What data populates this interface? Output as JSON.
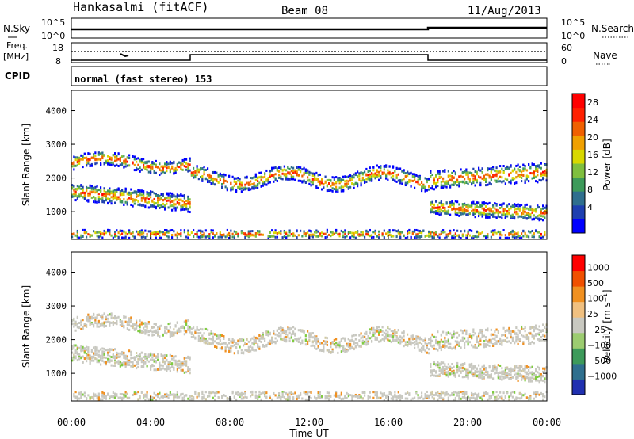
{
  "header": {
    "station": "Hankasalmi (fitACF)",
    "beam": "Beam 08",
    "date": "11/Aug/2013"
  },
  "top_panels": {
    "nsky_label": "N.Sky",
    "nsky_ticks": [
      "10^5",
      "10^0"
    ],
    "nsearch_label": "N.Search",
    "nsearch_ticks": [
      "10^5",
      "10^0"
    ],
    "freq_label_1": "Freq.",
    "freq_label_2": "[MHz]",
    "freq_ticks": [
      "18",
      "8"
    ],
    "nave_label": "Nave",
    "nave_ticks": [
      "60",
      "0"
    ],
    "cpid_label": "CPID",
    "cpid_text": "normal (fast stereo) 153"
  },
  "chart_data": [
    {
      "type": "heatmap",
      "name": "power",
      "ylabel": "Slant Range [km]",
      "ylim": [
        180,
        4600
      ],
      "yticks": [
        1000,
        2000,
        3000,
        4000
      ],
      "xlim": [
        0,
        24
      ],
      "colorbar": {
        "label": "Power [dB]",
        "ticks": [
          "4",
          "8",
          "12",
          "16",
          "20",
          "24",
          "28"
        ],
        "colors": [
          "#0000ff",
          "#1e3fb0",
          "#2f6f8e",
          "#3d9a5a",
          "#7fbf3f",
          "#d8d800",
          "#f0a000",
          "#f06000",
          "#ff2000",
          "#ff0000"
        ]
      }
    },
    {
      "type": "heatmap",
      "name": "velocity",
      "ylabel": "Slant Range [km]",
      "ylim": [
        180,
        4600
      ],
      "yticks": [
        1000,
        2000,
        3000,
        4000
      ],
      "xlim": [
        0,
        24
      ],
      "colorbar": {
        "label": "Velocity [m s⁻¹]",
        "ticks": [
          "1000",
          "500",
          "100",
          "25",
          "−25",
          "−100",
          "−500",
          "−1000"
        ],
        "colors": [
          "#2030b0",
          "#2f6f8e",
          "#3d9a5a",
          "#9ccc70",
          "#c8c8c0",
          "#f0c080",
          "#f09020",
          "#f05000",
          "#ff0000"
        ]
      }
    }
  ],
  "xaxis": {
    "label": "Time UT",
    "ticks": [
      "00:00",
      "04:00",
      "08:00",
      "12:00",
      "16:00",
      "20:00",
      "00:00"
    ]
  }
}
